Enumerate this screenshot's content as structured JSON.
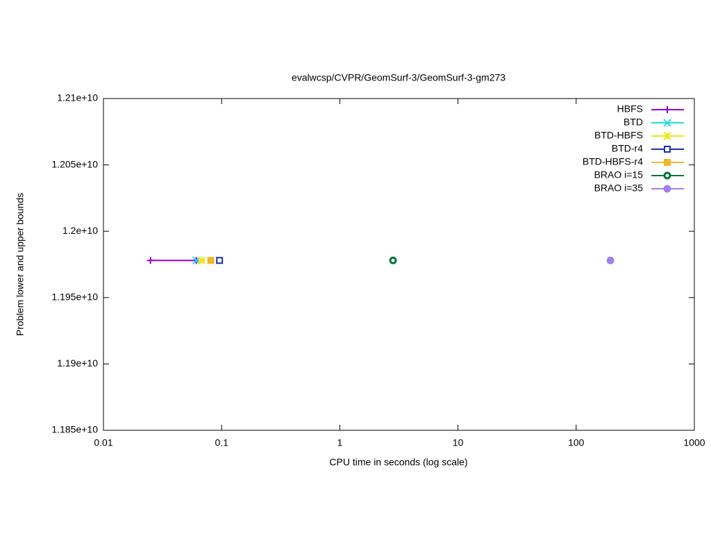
{
  "chart_data": {
    "type": "line",
    "title": "evalwcsp/CVPR/GeomSurf-3/GeomSurf-3-gm273",
    "x_label": "CPU time in seconds (log scale)",
    "y_label": "Problem lower and upper bounds",
    "x_scale": "log",
    "xlim": [
      0.01,
      1000
    ],
    "xticks": [
      0.01,
      0.1,
      1,
      10,
      100,
      1000
    ],
    "ylim": [
      11850000000,
      12100000000
    ],
    "yticks": [
      {
        "value": 11850000000,
        "label": "1.185e+10"
      },
      {
        "value": 11900000000,
        "label": "1.19e+10"
      },
      {
        "value": 11950000000,
        "label": "1.195e+10"
      },
      {
        "value": 12000000000,
        "label": "1.2e+10"
      },
      {
        "value": 12050000000,
        "label": "1.205e+10"
      },
      {
        "value": 12100000000,
        "label": "1.21e+10"
      }
    ],
    "legend_position": "top-right",
    "series": [
      {
        "name": "HBFS",
        "color": "#9400d3",
        "marker": "plus",
        "x": [
          0.025,
          0.061
        ],
        "values": [
          11978000000,
          11978000000
        ]
      },
      {
        "name": "BTD",
        "color": "#22dede",
        "marker": "cross",
        "x": [
          0.061
        ],
        "values": [
          11978000000
        ]
      },
      {
        "name": "BTD-HBFS",
        "color": "#e8e81a",
        "marker": "star",
        "x": [
          0.068
        ],
        "values": [
          11978000000
        ]
      },
      {
        "name": "BTD-r4",
        "color": "#1c2bb0",
        "marker": "square-open",
        "x": [
          0.096
        ],
        "values": [
          11978000000
        ]
      },
      {
        "name": "BTD-HBFS-r4",
        "color": "#f2b82a",
        "marker": "square",
        "x": [
          0.081
        ],
        "values": [
          11978000000
        ]
      },
      {
        "name": "BRAO i=15",
        "color": "#00733a",
        "marker": "circle-open",
        "x": [
          2.82
        ],
        "values": [
          11978000000
        ]
      },
      {
        "name": "BRAO i=35",
        "color": "#a080f0",
        "marker": "circle",
        "x": [
          195
        ],
        "values": [
          11978000000
        ]
      }
    ]
  }
}
